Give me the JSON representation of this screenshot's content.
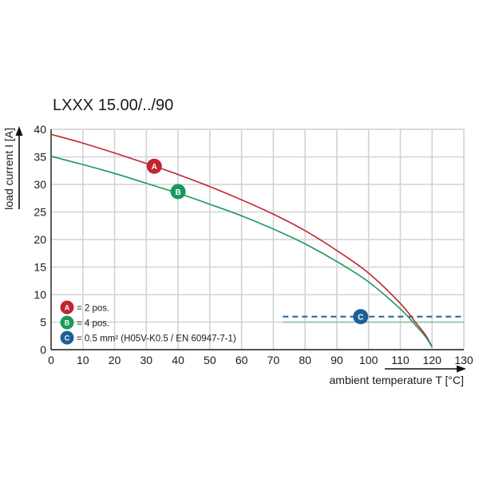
{
  "chart_data": {
    "type": "line",
    "title": "LXXX 15.00/../90",
    "xlabel": "ambient temperature T [°C]",
    "ylabel": "load current I [A]",
    "xlim": [
      0,
      130
    ],
    "ylim": [
      0,
      40
    ],
    "xticks": [
      "0",
      "10",
      "20",
      "30",
      "40",
      "50",
      "60",
      "70",
      "80",
      "90",
      "100",
      "110",
      "120",
      "130"
    ],
    "yticks": [
      "0",
      "5",
      "10",
      "15",
      "20",
      "25",
      "30",
      "35",
      "40"
    ],
    "grid": true,
    "legend_position": "bottom-left",
    "series": [
      {
        "marker": "A",
        "color": "#c0262d",
        "x": [
          0,
          10,
          20,
          30,
          40,
          50,
          60,
          70,
          80,
          90,
          100,
          110,
          115,
          118,
          120
        ],
        "y": [
          39.1,
          37.5,
          35.7,
          33.8,
          31.8,
          29.6,
          27.2,
          24.6,
          21.6,
          18.0,
          13.9,
          8.4,
          4.8,
          2.6,
          0.5
        ]
      },
      {
        "marker": "B",
        "color": "#1a9a5a",
        "x": [
          0,
          10,
          20,
          30,
          40,
          50,
          60,
          70,
          80,
          90,
          100,
          110,
          115,
          118,
          120
        ],
        "y": [
          35.1,
          33.6,
          32.0,
          30.2,
          28.4,
          26.4,
          24.3,
          21.9,
          19.2,
          16.0,
          12.3,
          7.4,
          4.3,
          2.3,
          0.5
        ]
      }
    ],
    "markers": [
      {
        "label": "A",
        "color": "#c0262d",
        "x": 32.5,
        "y": 33.3
      },
      {
        "label": "B",
        "color": "#1a9a5a",
        "x": 40,
        "y": 28.7
      },
      {
        "label": "C",
        "color": "#1f5f99",
        "x": 97.5,
        "y": 6
      }
    ],
    "reference_lines": [
      {
        "style": "dashed",
        "color": "#1f5f99",
        "y": 6,
        "x_from": 73,
        "x_to": 130
      },
      {
        "style": "solid",
        "color": "#7fc4a0",
        "y": 5,
        "x_from": 73,
        "x_to": 130
      }
    ],
    "legend": [
      {
        "badge": "A",
        "color": "#c0262d",
        "text": "= 2 pos."
      },
      {
        "badge": "B",
        "color": "#1a9a5a",
        "text": "= 4 pos."
      },
      {
        "badge": "C",
        "color": "#1f5f99",
        "text": "= 0.5 mm² (H05V-K0.5 / EN 60947-7-1)"
      }
    ]
  }
}
